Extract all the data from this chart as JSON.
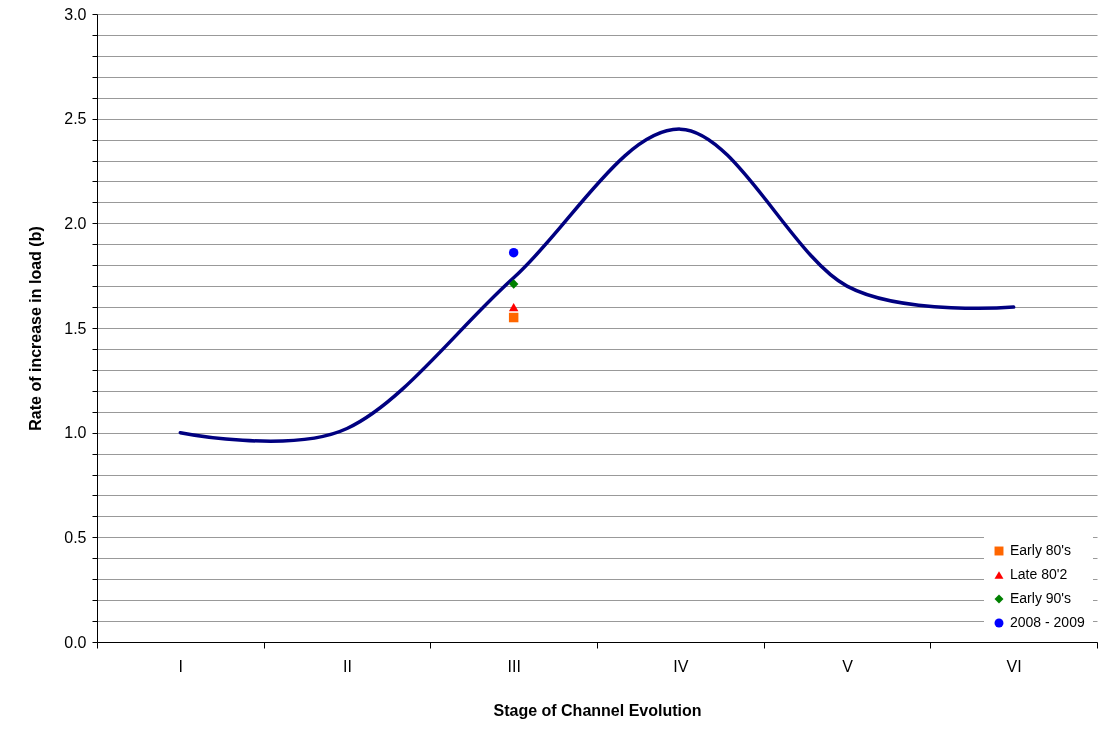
{
  "chart_data": {
    "type": "line",
    "xlabel": "Stage of Channel Evolution",
    "ylabel": "Rate of increase in load (b)",
    "categories": [
      "I",
      "II",
      "III",
      "IV",
      "V",
      "VI"
    ],
    "series": [
      {
        "type": "line",
        "color": "#000080",
        "values": [
          1.0,
          1.02,
          1.74,
          2.45,
          1.7,
          1.6
        ],
        "marker": "none"
      },
      {
        "type": "scatter",
        "name": "Early 80's",
        "color": "#ff6600",
        "x": [
          "III"
        ],
        "values": [
          1.55
        ],
        "marker": "square"
      },
      {
        "type": "scatter",
        "name": "Late 80'2",
        "color": "#ff0000",
        "x": [
          "III"
        ],
        "values": [
          1.6
        ],
        "marker": "triangle"
      },
      {
        "type": "scatter",
        "name": "Early 90's",
        "color": "#008000",
        "x": [
          "III"
        ],
        "values": [
          1.71
        ],
        "marker": "diamond"
      },
      {
        "type": "scatter",
        "name": "2008 - 2009",
        "color": "#0000ff",
        "x": [
          "III"
        ],
        "values": [
          1.86
        ],
        "marker": "circle"
      }
    ],
    "ylim": [
      0,
      3
    ],
    "yticks": [
      {
        "value": 0,
        "label": "0.0"
      },
      {
        "value": 0.1,
        "label": null
      },
      {
        "value": 0.2,
        "label": null
      },
      {
        "value": 0.3,
        "label": null
      },
      {
        "value": 0.4,
        "label": null
      },
      {
        "value": 0.5,
        "label": "0.5"
      },
      {
        "value": 0.6,
        "label": null
      },
      {
        "value": 0.7,
        "label": null
      },
      {
        "value": 0.8,
        "label": null
      },
      {
        "value": 0.9,
        "label": null
      },
      {
        "value": 1,
        "label": "1.0"
      },
      {
        "value": 1.1,
        "label": null
      },
      {
        "value": 1.2,
        "label": null
      },
      {
        "value": 1.3,
        "label": null
      },
      {
        "value": 1.4,
        "label": null
      },
      {
        "value": 1.5,
        "label": "1.5"
      },
      {
        "value": 1.6,
        "label": null
      },
      {
        "value": 1.7,
        "label": null
      },
      {
        "value": 1.8,
        "label": null
      },
      {
        "value": 1.9,
        "label": null
      },
      {
        "value": 2,
        "label": "2.0"
      },
      {
        "value": 2.1,
        "label": null
      },
      {
        "value": 2.2,
        "label": null
      },
      {
        "value": 2.3,
        "label": null
      },
      {
        "value": 2.4,
        "label": null
      },
      {
        "value": 2.5,
        "label": "2.5"
      },
      {
        "value": 2.6,
        "label": null
      },
      {
        "value": 2.7,
        "label": null
      },
      {
        "value": 2.8,
        "label": null
      },
      {
        "value": 2.9,
        "label": null
      },
      {
        "value": 3,
        "label": "3.0"
      }
    ],
    "grid": "y",
    "legend": "bottom right",
    "line_style": "solid"
  }
}
